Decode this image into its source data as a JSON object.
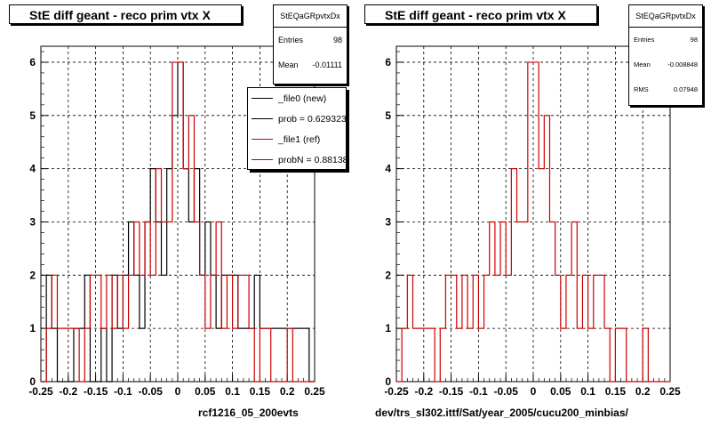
{
  "left": {
    "title": "StE  diff geant - reco prim vtx X",
    "stats": {
      "name": "StEQaGRpvtxDx",
      "rows": [
        {
          "label": "Entries",
          "value": "98"
        },
        {
          "label": "Mean",
          "value": "-0.01111"
        }
      ]
    },
    "legend": [
      {
        "text": "_file0 (new)",
        "color": "#000000"
      },
      {
        "text": "prob = 0.629323",
        "color": "#000000"
      },
      {
        "text": "_file1 (ref)",
        "color": "#cc0000"
      },
      {
        "text": "probN = 0.881384",
        "color": "#cc0000"
      }
    ],
    "footer": "rcf1216_05_200evts"
  },
  "right": {
    "title": "StE  diff geant - reco prim vtx X",
    "stats": {
      "name": "StEQaGRpvtxDx",
      "rows": [
        {
          "label": "Entries",
          "value": "98"
        },
        {
          "label": "Mean",
          "value": "-0.008848"
        },
        {
          "label": "RMS",
          "value": "0.07948"
        }
      ]
    },
    "footer": "dev/trs_sl302.ittf/Sat/year_2005/cucu200_minbias/"
  },
  "chart_data": [
    {
      "type": "histogram",
      "title": "StE  diff geant - reco prim vtx X",
      "xlim": [
        -0.25,
        0.25
      ],
      "ylim": [
        0,
        6.3
      ],
      "xticks": [
        "-0.25",
        "-0.2",
        "-0.15",
        "-0.1",
        "-0.05",
        "0",
        "0.05",
        "0.1",
        "0.15",
        "0.2",
        "0.25"
      ],
      "yticks": [
        "0",
        "1",
        "2",
        "3",
        "4",
        "5",
        "6"
      ],
      "grid": true,
      "legend_position": "top-right",
      "series": [
        {
          "name": "_file0 (new)",
          "color": "#000000",
          "x": [
            -0.25,
            -0.24,
            -0.23,
            -0.22,
            -0.19,
            -0.18,
            -0.17,
            -0.16,
            -0.14,
            -0.13,
            -0.12,
            -0.11,
            -0.1,
            -0.09,
            -0.08,
            -0.07,
            -0.06,
            -0.05,
            -0.04,
            -0.03,
            -0.02,
            -0.01,
            0,
            0.01,
            0.02,
            0.03,
            0.04,
            0.05,
            0.06,
            0.07,
            0.08,
            0.09,
            0.1,
            0.11,
            0.13,
            0.14,
            0.15,
            0.17,
            0.2,
            0.21,
            0.23,
            0.24
          ],
          "values": [
            0,
            2,
            1,
            0,
            1,
            1,
            2,
            0,
            1,
            0,
            2,
            1,
            2,
            3,
            2,
            1,
            3,
            4,
            3,
            2,
            4,
            5,
            6,
            4,
            3,
            4,
            2,
            3,
            2,
            1,
            2,
            2,
            2,
            1,
            1,
            2,
            1,
            1,
            1,
            1,
            1,
            0
          ]
        },
        {
          "name": "_file1 (ref)",
          "color": "#cc0000",
          "x": [
            -0.25,
            -0.24,
            -0.23,
            -0.22,
            -0.19,
            -0.18,
            -0.17,
            -0.16,
            -0.14,
            -0.13,
            -0.12,
            -0.11,
            -0.1,
            -0.09,
            -0.08,
            -0.07,
            -0.06,
            -0.05,
            -0.04,
            -0.03,
            -0.02,
            -0.01,
            0,
            0.01,
            0.02,
            0.03,
            0.04,
            0.05,
            0.06,
            0.07,
            0.08,
            0.09,
            0.1,
            0.11,
            0.13,
            0.14,
            0.15,
            0.17,
            0.2,
            0.21,
            0.23,
            0.24
          ],
          "values": [
            0,
            1,
            2,
            1,
            1,
            0,
            1,
            2,
            1,
            2,
            1,
            2,
            1,
            2,
            3,
            2,
            3,
            2,
            4,
            3,
            3,
            6,
            6,
            4,
            5,
            3,
            2,
            1,
            2,
            3,
            1,
            2,
            1,
            2,
            1,
            0,
            1,
            0,
            1,
            0,
            0,
            0
          ]
        }
      ]
    },
    {
      "type": "histogram",
      "title": "StE  diff geant - reco prim vtx X",
      "xlim": [
        -0.25,
        0.25
      ],
      "ylim": [
        0,
        6.3
      ],
      "xticks": [
        "-0.25",
        "-0.2",
        "-0.15",
        "-0.1",
        "-0.05",
        "0",
        "0.05",
        "0.1",
        "0.15",
        "0.2",
        "0.25"
      ],
      "yticks": [
        "0",
        "1",
        "2",
        "3",
        "4",
        "5",
        "6"
      ],
      "grid": true,
      "series": [
        {
          "name": "_file1 (ref)",
          "color": "#cc0000",
          "x": [
            -0.25,
            -0.24,
            -0.23,
            -0.22,
            -0.19,
            -0.18,
            -0.17,
            -0.16,
            -0.14,
            -0.13,
            -0.12,
            -0.11,
            -0.1,
            -0.09,
            -0.08,
            -0.07,
            -0.06,
            -0.05,
            -0.04,
            -0.03,
            -0.02,
            -0.01,
            0,
            0.01,
            0.02,
            0.03,
            0.04,
            0.05,
            0.06,
            0.07,
            0.08,
            0.09,
            0.1,
            0.11,
            0.13,
            0.14,
            0.15,
            0.17,
            0.2,
            0.21,
            0.23,
            0.24
          ],
          "values": [
            0,
            1,
            2,
            1,
            1,
            0,
            1,
            2,
            1,
            2,
            1,
            2,
            1,
            2,
            3,
            2,
            3,
            2,
            4,
            3,
            3,
            6,
            6,
            4,
            5,
            3,
            2,
            1,
            2,
            3,
            1,
            2,
            1,
            2,
            1,
            0,
            1,
            0,
            1,
            0,
            0,
            0
          ]
        }
      ]
    }
  ]
}
